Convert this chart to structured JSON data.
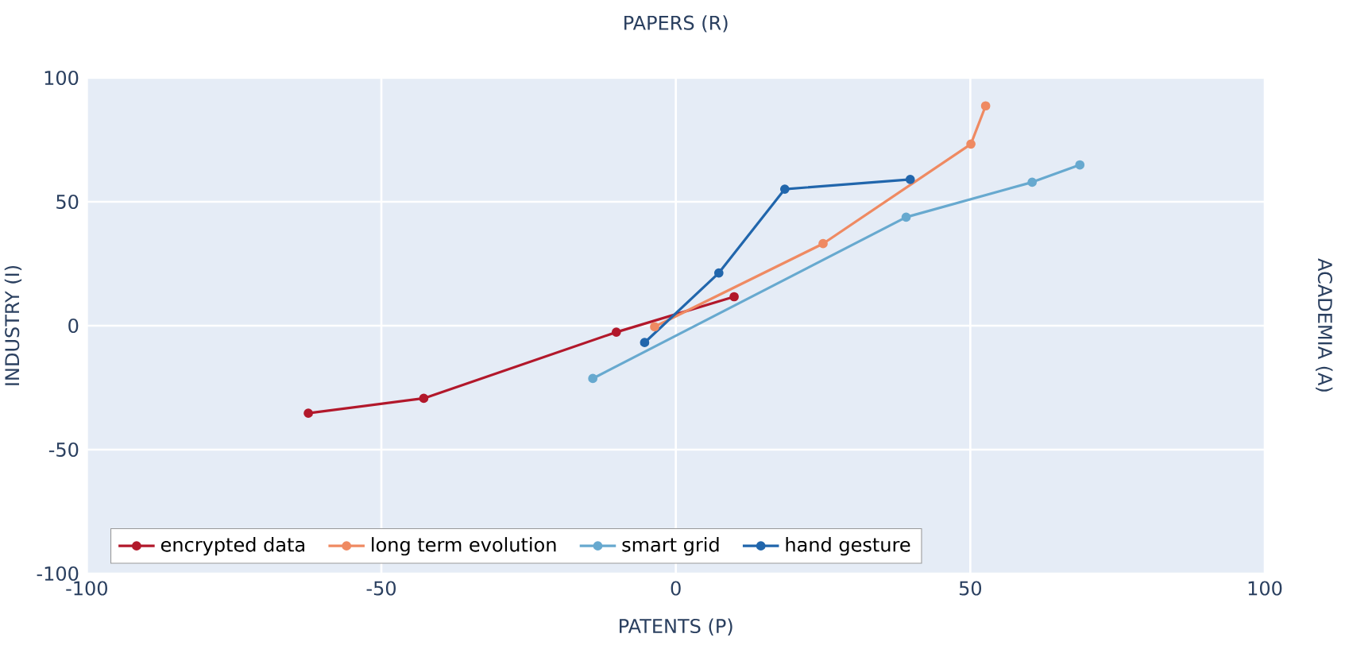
{
  "chart_data": {
    "type": "line",
    "title": "PAPERS (R)",
    "xlabel": "PATENTS (P)",
    "ylabel": "INDUSTRY (I)",
    "y2label": "ACADEMIA (A)",
    "xlim": [
      -100,
      100
    ],
    "ylim": [
      -100,
      100
    ],
    "xticks": [
      -100,
      -50,
      0,
      50,
      100
    ],
    "yticks": [
      -100,
      -50,
      0,
      50,
      100
    ],
    "grid": true,
    "legend": "bottom left",
    "marker": "circle",
    "line_style": "solid",
    "series": [
      {
        "name": "encrypted data",
        "color": "#b2182b",
        "x": [
          -62.4,
          -42.8,
          -10.1,
          9.9
        ],
        "values": [
          -35.3,
          -29.3,
          -2.6,
          11.7
        ]
      },
      {
        "name": "long term evolution",
        "color": "#ef8a62",
        "x": [
          52.6,
          50.1,
          25.0,
          -3.6
        ],
        "values": [
          88.7,
          73.3,
          33.1,
          -0.4
        ]
      },
      {
        "name": "smart grid",
        "color": "#67a9cf",
        "x": [
          -14.1,
          39.1,
          60.5,
          68.6
        ],
        "values": [
          -21.3,
          43.8,
          57.9,
          64.9
        ]
      },
      {
        "name": "hand gesture",
        "color": "#2166ac",
        "x": [
          39.8,
          18.5,
          7.3,
          -5.3
        ],
        "values": [
          59.0,
          55.1,
          21.3,
          -6.8
        ]
      }
    ]
  }
}
